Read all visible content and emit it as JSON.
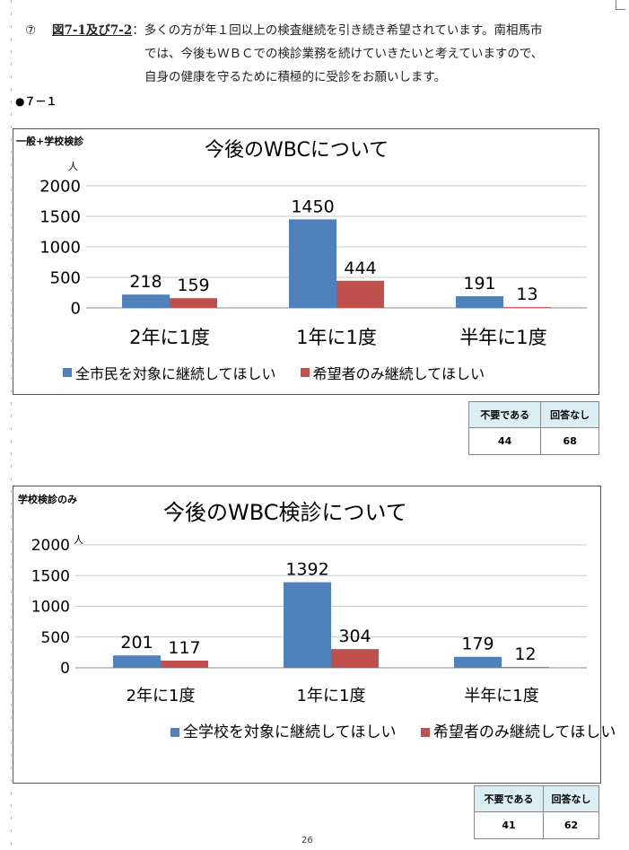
{
  "intro": {
    "circle_num": "⑦",
    "figure_ref": "図7-1及び7-2",
    "line1": "：多くの方が年１回以上の検査継続を引き続き希望されています。南相馬市",
    "line2": "では、今後もＷＢＣでの検診業務を続けていきたいと考えていますので、",
    "line3": "自身の健康を守るために積極的に受診をお願いします。"
  },
  "section_label": "●７－１",
  "chart1": {
    "box_label": "一般+学校検診",
    "unit": "人",
    "table": {
      "headers": [
        "不要である",
        "回答なし"
      ],
      "values": [
        "44",
        "68"
      ]
    }
  },
  "chart2": {
    "box_label": "学校検診のみ",
    "unit": "人",
    "table": {
      "headers": [
        "不要である",
        "回答なし"
      ],
      "values": [
        "41",
        "62"
      ]
    }
  },
  "page_number": "26",
  "colors": {
    "blue": "#4f81bd",
    "red": "#c0504d",
    "table_header": "#dbeef4"
  },
  "chart_data": [
    {
      "type": "bar",
      "title": "今後のWBCについて",
      "categories": [
        "2年に1度",
        "1年に1度",
        "半年に1度"
      ],
      "series": [
        {
          "name": "全市民を対象に継続してほしい",
          "values": [
            218,
            1450,
            191
          ]
        },
        {
          "name": "希望者のみ継続してほしい",
          "values": [
            159,
            444,
            13
          ]
        }
      ],
      "ylim": [
        0,
        2000
      ],
      "yticks": [
        0,
        500,
        1000,
        1500,
        2000
      ],
      "ylabel": "人",
      "grid": true,
      "legend": "bottom"
    },
    {
      "type": "bar",
      "title": "今後のWBC検診について",
      "categories": [
        "2年に1度",
        "1年に1度",
        "半年に1度"
      ],
      "series": [
        {
          "name": "全学校を対象に継続してほしい",
          "values": [
            201,
            1392,
            179
          ]
        },
        {
          "name": "希望者のみ継続してほしい",
          "values": [
            117,
            304,
            12
          ]
        }
      ],
      "ylim": [
        0,
        2000
      ],
      "yticks": [
        0,
        500,
        1000,
        1500,
        2000
      ],
      "ylabel": "人",
      "grid": true,
      "legend": "bottom"
    }
  ]
}
